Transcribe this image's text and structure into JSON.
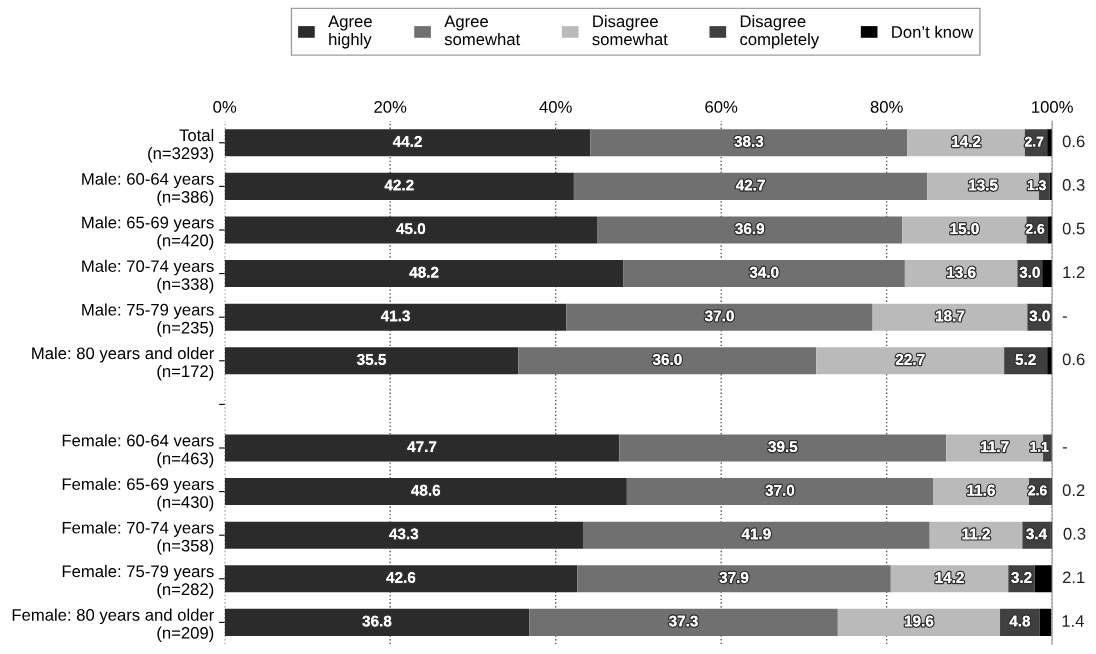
{
  "chart_data": {
    "type": "bar",
    "orientation": "horizontal",
    "stacked": true,
    "categories": [
      "Total\n(n=3293)",
      "Male: 60-64 years\n(n=386)",
      "Male: 65-69 years\n(n=420)",
      "Male: 70-74 years\n(n=338)",
      "Male: 75-79 years\n(n=235)",
      "Male: 80 years and older\n(n=172)",
      null,
      "Female: 60-64 vears\n(n=463)",
      "Female: 65-69 years\n(n=430)",
      "Female: 70-74 years\n(n=358)",
      "Female: 75-79 years\n(n=282)",
      "Female: 80 years and older\n(n=209)"
    ],
    "series": [
      {
        "name": "Agree\nhighly",
        "color": "#2b2b2b",
        "values": [
          44.2,
          42.2,
          45.0,
          48.2,
          41.3,
          35.5,
          null,
          47.7,
          48.6,
          43.3,
          42.6,
          36.8
        ],
        "value_labels": [
          "44.2",
          "42.2",
          "45.0",
          "48.2",
          "41.3",
          "35.5",
          null,
          "47.7",
          "48.6",
          "43.3",
          "42.6",
          "36.8"
        ]
      },
      {
        "name": "Agree\nsomewhat",
        "color": "#707070",
        "values": [
          38.3,
          42.7,
          36.9,
          34.0,
          37.0,
          36.0,
          null,
          39.5,
          37.0,
          41.9,
          37.9,
          37.3
        ],
        "value_labels": [
          "38.3",
          "42.7",
          "36.9",
          "34.0",
          "37.0",
          "36.0",
          null,
          "39.5",
          "37.0",
          "41.9",
          "37.9",
          "37.3"
        ]
      },
      {
        "name": "Disagree\nsomewhat",
        "color": "#bababa",
        "values": [
          14.2,
          13.5,
          15.0,
          13.6,
          18.7,
          22.7,
          null,
          11.7,
          11.6,
          11.2,
          14.2,
          19.6
        ],
        "value_labels": [
          "14.2",
          "13.5",
          "15.0",
          "13.6",
          "18.7",
          "22.7",
          null,
          "11.7",
          "11.6",
          "11.2",
          "14.2",
          "19.6"
        ]
      },
      {
        "name": "Disagree\ncompletely",
        "color": "#404040",
        "values": [
          2.7,
          1.3,
          2.6,
          3.0,
          3.0,
          5.2,
          null,
          1.1,
          2.6,
          3.4,
          3.2,
          4.8
        ],
        "value_labels": [
          "2.7",
          "1.3",
          "2.6",
          "3.0",
          "3.0",
          "5.2",
          null,
          "1.1",
          "2.6",
          "3.4",
          "3.2",
          "4.8"
        ]
      },
      {
        "name": "Don’t know",
        "color": "#000000",
        "values": [
          0.6,
          0.3,
          0.5,
          1.2,
          0,
          0.6,
          null,
          0,
          0.2,
          0.3,
          2.1,
          1.4
        ],
        "value_labels": [
          "0.6",
          "0.3",
          "0.5",
          "1.2",
          "-",
          "0.6",
          null,
          "-",
          "0.2",
          "0.3",
          "2.1",
          "1.4"
        ]
      }
    ],
    "xlim": [
      0,
      100
    ],
    "xticks": [
      {
        "value": 0,
        "label": "0%"
      },
      {
        "value": 20,
        "label": "20%"
      },
      {
        "value": 40,
        "label": "40%"
      },
      {
        "value": 60,
        "label": "60%"
      },
      {
        "value": 80,
        "label": "80%"
      },
      {
        "value": 100,
        "label": "100%"
      }
    ],
    "grid": "x",
    "legend": "top"
  }
}
